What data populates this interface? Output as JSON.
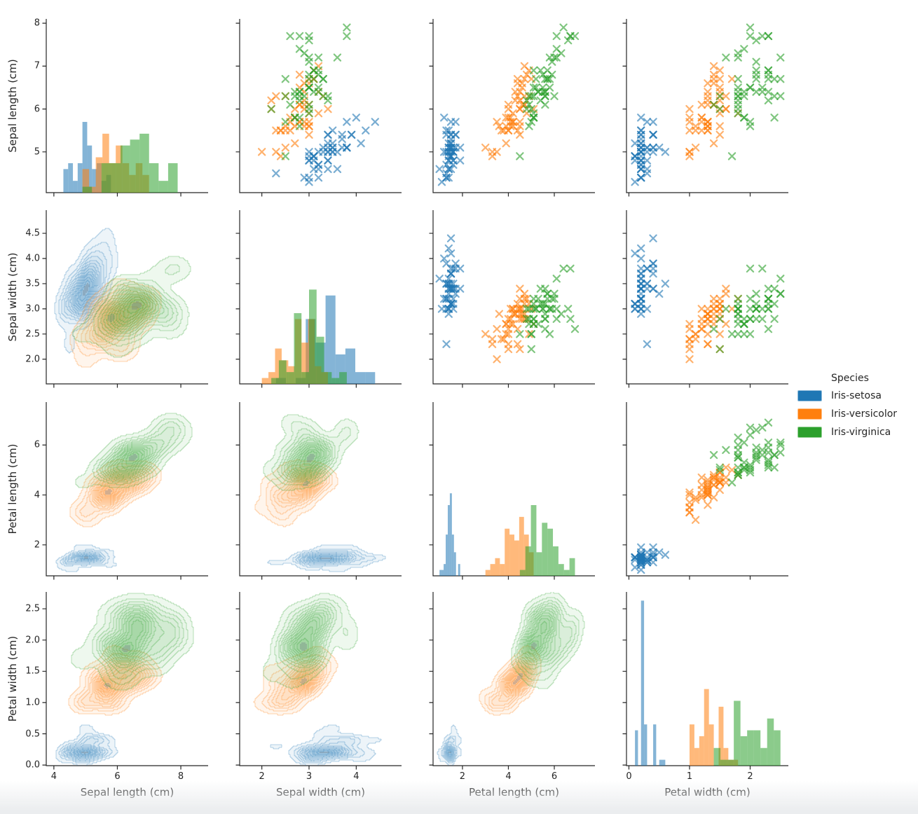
{
  "page": {
    "background": "#ffffff",
    "footer_strip_color": "#ebedef"
  },
  "legend": {
    "title": "Species",
    "entries": [
      {
        "label": "Iris-setosa",
        "color": "#1f77b4"
      },
      {
        "label": "Iris-versicolor",
        "color": "#ff7f0e"
      },
      {
        "label": "Iris-virginica",
        "color": "#2ca02c"
      }
    ]
  },
  "style": {
    "marker": "x",
    "marker_alpha": 0.6,
    "marker_size": 4.6,
    "marker_linewidth": 2.2,
    "hist_alpha": 0.55,
    "hist_bins_per_species": 10,
    "kde_levels": 12,
    "kde_thresh": 0.05,
    "spine_color": "#262626",
    "text_color": "#262626"
  },
  "chart_data": {
    "type": "scatter",
    "subtype": "pairplot-matrix",
    "grid": {
      "diagonal": "histogram",
      "upper_triangle": "scatter-x-markers",
      "lower_triangle": "kde-filled-contours"
    },
    "legend_position": "center right",
    "variables": [
      {
        "label": "Sepal length (cm)",
        "xlim": [
          3.76,
          8.86
        ],
        "ylim": [
          4.05,
          8.1
        ],
        "xticks": {
          "values": [
            4,
            6,
            8
          ],
          "labels": [
            "4",
            "6",
            "8"
          ]
        },
        "yticks": {
          "values": [
            5,
            6,
            7,
            8
          ],
          "labels": [
            "5",
            "6",
            "7",
            "8"
          ]
        }
      },
      {
        "label": "Sepal width (cm)",
        "xlim": [
          1.53,
          4.96
        ],
        "ylim": [
          1.51,
          4.96
        ],
        "xticks": {
          "values": [
            2,
            3,
            4
          ],
          "labels": [
            "2",
            "3",
            "4"
          ]
        },
        "yticks": {
          "values": [
            2,
            2.5,
            3,
            3.5,
            4,
            4.5
          ],
          "labels": [
            "2.0",
            "2.5",
            "3.0",
            "3.5",
            "4.0",
            "4.5"
          ]
        }
      },
      {
        "label": "Petal length (cm)",
        "xlim": [
          0.72,
          7.77
        ],
        "ylim": [
          0.76,
          7.72
        ],
        "xticks": {
          "values": [
            2,
            4,
            6
          ],
          "labels": [
            "2",
            "4",
            "6"
          ]
        },
        "yticks": {
          "values": [
            2,
            4,
            6
          ],
          "labels": [
            "2",
            "4",
            "6"
          ]
        }
      },
      {
        "label": "Petal width (cm)",
        "xlim": [
          -0.04,
          2.63
        ],
        "ylim": [
          -0.01,
          2.77
        ],
        "xticks": {
          "values": [
            0,
            1,
            2
          ],
          "labels": [
            "0",
            "1",
            "2"
          ]
        },
        "yticks": {
          "values": [
            0,
            0.5,
            1,
            1.5,
            2,
            2.5
          ],
          "labels": [
            "0.0",
            "0.5",
            "1.0",
            "1.5",
            "2.0",
            "2.5"
          ]
        }
      }
    ],
    "series": [
      {
        "name": "Iris-setosa",
        "color": "#1f77b4",
        "points": [
          [
            5.1,
            3.5,
            1.4,
            0.2
          ],
          [
            4.9,
            3.0,
            1.4,
            0.2
          ],
          [
            4.7,
            3.2,
            1.3,
            0.2
          ],
          [
            4.6,
            3.1,
            1.5,
            0.2
          ],
          [
            5.0,
            3.6,
            1.4,
            0.2
          ],
          [
            5.4,
            3.9,
            1.7,
            0.4
          ],
          [
            4.6,
            3.4,
            1.4,
            0.3
          ],
          [
            5.0,
            3.4,
            1.5,
            0.2
          ],
          [
            4.4,
            2.9,
            1.4,
            0.2
          ],
          [
            4.9,
            3.1,
            1.5,
            0.1
          ],
          [
            5.4,
            3.7,
            1.5,
            0.2
          ],
          [
            4.8,
            3.4,
            1.6,
            0.2
          ],
          [
            4.8,
            3.0,
            1.4,
            0.1
          ],
          [
            4.3,
            3.0,
            1.1,
            0.1
          ],
          [
            5.8,
            4.0,
            1.2,
            0.2
          ],
          [
            5.7,
            4.4,
            1.5,
            0.4
          ],
          [
            5.4,
            3.9,
            1.3,
            0.4
          ],
          [
            5.1,
            3.5,
            1.4,
            0.3
          ],
          [
            5.7,
            3.8,
            1.7,
            0.3
          ],
          [
            5.1,
            3.8,
            1.5,
            0.3
          ],
          [
            5.4,
            3.4,
            1.7,
            0.2
          ],
          [
            5.1,
            3.7,
            1.5,
            0.4
          ],
          [
            4.6,
            3.6,
            1.0,
            0.2
          ],
          [
            5.1,
            3.3,
            1.7,
            0.5
          ],
          [
            4.8,
            3.4,
            1.9,
            0.2
          ],
          [
            5.0,
            3.0,
            1.6,
            0.2
          ],
          [
            5.0,
            3.4,
            1.6,
            0.4
          ],
          [
            5.2,
            3.5,
            1.5,
            0.2
          ],
          [
            5.2,
            3.4,
            1.4,
            0.2
          ],
          [
            4.7,
            3.2,
            1.6,
            0.2
          ],
          [
            4.8,
            3.1,
            1.6,
            0.2
          ],
          [
            5.4,
            3.4,
            1.5,
            0.4
          ],
          [
            5.2,
            4.1,
            1.5,
            0.1
          ],
          [
            5.5,
            4.2,
            1.4,
            0.2
          ],
          [
            4.9,
            3.1,
            1.5,
            0.1
          ],
          [
            5.0,
            3.2,
            1.2,
            0.2
          ],
          [
            5.5,
            3.5,
            1.3,
            0.2
          ],
          [
            4.9,
            3.1,
            1.5,
            0.1
          ],
          [
            4.4,
            3.0,
            1.3,
            0.2
          ],
          [
            5.1,
            3.4,
            1.5,
            0.2
          ],
          [
            5.0,
            3.5,
            1.3,
            0.3
          ],
          [
            4.5,
            2.3,
            1.3,
            0.3
          ],
          [
            4.4,
            3.2,
            1.3,
            0.2
          ],
          [
            5.0,
            3.5,
            1.6,
            0.6
          ],
          [
            5.1,
            3.8,
            1.9,
            0.4
          ],
          [
            4.8,
            3.0,
            1.4,
            0.3
          ],
          [
            5.1,
            3.8,
            1.6,
            0.2
          ],
          [
            4.6,
            3.2,
            1.4,
            0.2
          ],
          [
            5.3,
            3.7,
            1.5,
            0.2
          ],
          [
            5.0,
            3.3,
            1.4,
            0.2
          ]
        ]
      },
      {
        "name": "Iris-versicolor",
        "color": "#ff7f0e",
        "points": [
          [
            7.0,
            3.2,
            4.7,
            1.4
          ],
          [
            6.4,
            3.2,
            4.5,
            1.5
          ],
          [
            6.9,
            3.1,
            4.9,
            1.5
          ],
          [
            5.5,
            2.3,
            4.0,
            1.3
          ],
          [
            6.5,
            2.8,
            4.6,
            1.5
          ],
          [
            5.7,
            2.8,
            4.5,
            1.3
          ],
          [
            6.3,
            3.3,
            4.7,
            1.6
          ],
          [
            4.9,
            2.4,
            3.3,
            1.0
          ],
          [
            6.6,
            2.9,
            4.6,
            1.3
          ],
          [
            5.2,
            2.7,
            3.9,
            1.4
          ],
          [
            5.0,
            2.0,
            3.5,
            1.0
          ],
          [
            5.9,
            3.0,
            4.2,
            1.5
          ],
          [
            6.0,
            2.2,
            4.0,
            1.0
          ],
          [
            6.1,
            2.9,
            4.7,
            1.4
          ],
          [
            5.6,
            2.9,
            3.6,
            1.3
          ],
          [
            6.7,
            3.1,
            4.4,
            1.4
          ],
          [
            5.6,
            3.0,
            4.5,
            1.5
          ],
          [
            5.8,
            2.7,
            4.1,
            1.0
          ],
          [
            6.2,
            2.2,
            4.5,
            1.5
          ],
          [
            5.6,
            2.5,
            3.9,
            1.1
          ],
          [
            5.9,
            3.2,
            4.8,
            1.8
          ],
          [
            6.1,
            2.8,
            4.0,
            1.3
          ],
          [
            6.3,
            2.5,
            4.9,
            1.5
          ],
          [
            6.1,
            2.8,
            4.7,
            1.2
          ],
          [
            6.4,
            2.9,
            4.3,
            1.3
          ],
          [
            6.6,
            3.0,
            4.4,
            1.4
          ],
          [
            6.8,
            2.8,
            4.8,
            1.4
          ],
          [
            6.7,
            3.0,
            5.0,
            1.7
          ],
          [
            6.0,
            2.9,
            4.5,
            1.5
          ],
          [
            5.7,
            2.6,
            3.5,
            1.0
          ],
          [
            5.5,
            2.4,
            3.8,
            1.1
          ],
          [
            5.5,
            2.4,
            3.7,
            1.0
          ],
          [
            5.8,
            2.7,
            3.9,
            1.2
          ],
          [
            6.0,
            2.7,
            5.1,
            1.6
          ],
          [
            5.4,
            3.0,
            4.5,
            1.5
          ],
          [
            6.0,
            3.4,
            4.5,
            1.6
          ],
          [
            6.7,
            3.1,
            4.7,
            1.5
          ],
          [
            6.3,
            2.3,
            4.4,
            1.3
          ],
          [
            5.6,
            3.0,
            4.1,
            1.3
          ],
          [
            5.5,
            2.5,
            4.0,
            1.3
          ],
          [
            5.5,
            2.6,
            4.4,
            1.2
          ],
          [
            6.1,
            3.0,
            4.6,
            1.4
          ],
          [
            5.8,
            2.6,
            4.0,
            1.2
          ],
          [
            5.0,
            2.3,
            3.3,
            1.0
          ],
          [
            5.6,
            2.7,
            4.2,
            1.3
          ],
          [
            5.7,
            3.0,
            4.2,
            1.2
          ],
          [
            5.7,
            2.9,
            4.2,
            1.3
          ],
          [
            6.2,
            2.9,
            4.3,
            1.3
          ],
          [
            5.1,
            2.5,
            3.0,
            1.1
          ],
          [
            5.7,
            2.8,
            4.1,
            1.3
          ]
        ]
      },
      {
        "name": "Iris-virginica",
        "color": "#2ca02c",
        "points": [
          [
            6.3,
            3.3,
            6.0,
            2.5
          ],
          [
            5.8,
            2.7,
            5.1,
            1.9
          ],
          [
            7.1,
            3.0,
            5.9,
            2.1
          ],
          [
            6.3,
            2.9,
            5.6,
            1.8
          ],
          [
            6.5,
            3.0,
            5.8,
            2.2
          ],
          [
            7.6,
            3.0,
            6.6,
            2.1
          ],
          [
            4.9,
            2.5,
            4.5,
            1.7
          ],
          [
            7.3,
            2.9,
            6.3,
            1.8
          ],
          [
            6.7,
            2.5,
            5.8,
            1.8
          ],
          [
            7.2,
            3.6,
            6.1,
            2.5
          ],
          [
            6.5,
            3.2,
            5.1,
            2.0
          ],
          [
            6.4,
            2.7,
            5.3,
            1.9
          ],
          [
            6.8,
            3.0,
            5.5,
            2.1
          ],
          [
            5.7,
            2.5,
            5.0,
            2.0
          ],
          [
            5.8,
            2.8,
            5.1,
            2.4
          ],
          [
            6.4,
            3.2,
            5.3,
            2.3
          ],
          [
            6.5,
            3.0,
            5.5,
            1.8
          ],
          [
            7.7,
            3.8,
            6.7,
            2.2
          ],
          [
            7.7,
            2.6,
            6.9,
            2.3
          ],
          [
            6.0,
            2.2,
            5.0,
            1.5
          ],
          [
            6.9,
            3.2,
            5.7,
            2.3
          ],
          [
            5.6,
            2.8,
            4.9,
            2.0
          ],
          [
            7.7,
            2.8,
            6.7,
            2.0
          ],
          [
            6.3,
            2.7,
            4.9,
            1.8
          ],
          [
            6.7,
            3.3,
            5.7,
            2.1
          ],
          [
            7.2,
            3.2,
            6.0,
            1.8
          ],
          [
            6.2,
            2.8,
            4.8,
            1.8
          ],
          [
            6.1,
            3.0,
            4.9,
            1.8
          ],
          [
            6.4,
            2.8,
            5.6,
            2.1
          ],
          [
            7.2,
            3.0,
            5.8,
            1.6
          ],
          [
            7.4,
            2.8,
            6.1,
            1.9
          ],
          [
            7.9,
            3.8,
            6.4,
            2.0
          ],
          [
            6.4,
            2.8,
            5.6,
            2.2
          ],
          [
            6.3,
            2.8,
            5.1,
            1.5
          ],
          [
            6.1,
            2.6,
            5.6,
            1.4
          ],
          [
            7.7,
            3.0,
            6.1,
            2.3
          ],
          [
            6.3,
            3.4,
            5.6,
            2.4
          ],
          [
            6.4,
            3.1,
            5.5,
            1.8
          ],
          [
            6.0,
            3.0,
            4.8,
            1.8
          ],
          [
            6.9,
            3.1,
            5.4,
            2.1
          ],
          [
            6.7,
            3.1,
            5.6,
            2.4
          ],
          [
            6.9,
            3.1,
            5.1,
            2.3
          ],
          [
            5.8,
            2.7,
            5.1,
            1.9
          ],
          [
            6.8,
            3.2,
            5.9,
            2.3
          ],
          [
            6.7,
            3.3,
            5.7,
            2.5
          ],
          [
            6.7,
            3.0,
            5.2,
            2.3
          ],
          [
            6.3,
            2.5,
            5.0,
            1.9
          ],
          [
            6.5,
            3.0,
            5.2,
            2.0
          ],
          [
            6.2,
            3.4,
            5.4,
            2.3
          ],
          [
            5.9,
            3.0,
            5.1,
            1.8
          ]
        ]
      }
    ]
  }
}
